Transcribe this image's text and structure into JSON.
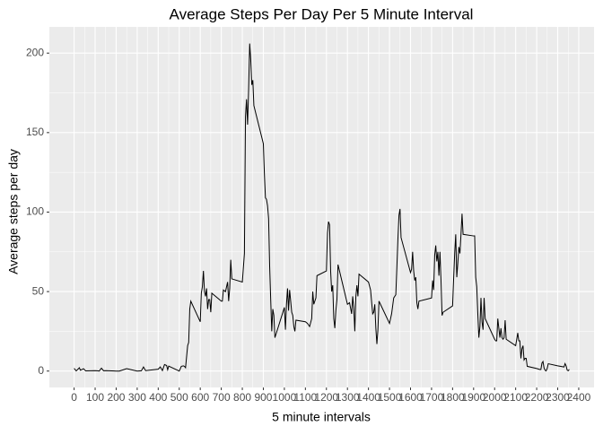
{
  "chart_data": {
    "type": "line",
    "title": "Average Steps Per Day Per 5 Minute Interval",
    "x_label": "5 minute intervals",
    "y_label": "Average steps per day",
    "x": [
      0,
      10,
      25,
      30,
      45,
      55,
      100,
      110,
      120,
      125,
      130,
      140,
      150,
      200,
      215,
      250,
      300,
      320,
      330,
      340,
      400,
      410,
      420,
      430,
      440,
      445,
      450,
      500,
      510,
      520,
      525,
      530,
      540,
      545,
      550,
      555,
      600,
      605,
      610,
      615,
      620,
      625,
      630,
      635,
      640,
      645,
      650,
      655,
      700,
      705,
      710,
      720,
      730,
      735,
      740,
      745,
      750,
      800,
      810,
      815,
      820,
      825,
      830,
      835,
      840,
      845,
      850,
      855,
      900,
      905,
      910,
      915,
      920,
      925,
      930,
      935,
      940,
      945,
      950,
      955,
      1000,
      1005,
      1010,
      1015,
      1020,
      1025,
      1030,
      1035,
      1040,
      1045,
      1050,
      1055,
      1100,
      1110,
      1120,
      1130,
      1135,
      1140,
      1145,
      1150,
      1155,
      1200,
      1205,
      1210,
      1215,
      1220,
      1225,
      1230,
      1235,
      1240,
      1245,
      1250,
      1255,
      1300,
      1310,
      1320,
      1325,
      1330,
      1335,
      1340,
      1345,
      1350,
      1355,
      1400,
      1410,
      1420,
      1425,
      1430,
      1435,
      1440,
      1445,
      1450,
      1500,
      1510,
      1520,
      1525,
      1530,
      1535,
      1540,
      1545,
      1550,
      1555,
      1600,
      1605,
      1610,
      1615,
      1620,
      1625,
      1630,
      1635,
      1640,
      1700,
      1705,
      1710,
      1715,
      1720,
      1725,
      1730,
      1735,
      1740,
      1745,
      1750,
      1755,
      1800,
      1805,
      1810,
      1815,
      1820,
      1825,
      1830,
      1835,
      1840,
      1845,
      1850,
      1900,
      1905,
      1910,
      1915,
      1920,
      1925,
      1930,
      1935,
      1940,
      1945,
      1950,
      1955,
      2000,
      2005,
      2010,
      2015,
      2020,
      2025,
      2030,
      2035,
      2040,
      2045,
      2050,
      2055,
      2100,
      2110,
      2115,
      2120,
      2125,
      2130,
      2135,
      2140,
      2145,
      2150,
      2155,
      2200,
      2215,
      2220,
      2225,
      2230,
      2235,
      2240,
      2245,
      2250,
      2255,
      2300,
      2330,
      2335,
      2340,
      2345,
      2350,
      2355
    ],
    "values": [
      1.7,
      0.1,
      2.1,
      0.5,
      1.5,
      0.1,
      0.3,
      0.2,
      0,
      1.1,
      1.8,
      0.2,
      0.3,
      0,
      0,
      1.5,
      0,
      0.2,
      2.6,
      0.3,
      1.2,
      2.6,
      0.3,
      4.1,
      3.5,
      0.8,
      3.1,
      0,
      3.0,
      3.3,
      2.9,
      2.1,
      16,
      18,
      39,
      44,
      31,
      49,
      53,
      63,
      50,
      47,
      52,
      39,
      45,
      45,
      37,
      49,
      44,
      44,
      51,
      50,
      56,
      44,
      52,
      70,
      58,
      56,
      74,
      160,
      171,
      155,
      177,
      206,
      196,
      180,
      183,
      167,
      143,
      124,
      109,
      108,
      104,
      96,
      66,
      45,
      25,
      39,
      35,
      21,
      40,
      26,
      42,
      52,
      38,
      51,
      44,
      37,
      35,
      28,
      25,
      32,
      31,
      30,
      28,
      33,
      50,
      42,
      44,
      46,
      60,
      63,
      87,
      94,
      92,
      63,
      50,
      54,
      33,
      27,
      38,
      45,
      67,
      42,
      43,
      36,
      47,
      40,
      25,
      47,
      54,
      47,
      61,
      56,
      51,
      36,
      37,
      42,
      27,
      17,
      26,
      44,
      30,
      36,
      46,
      47,
      48,
      65,
      83,
      98,
      102,
      84,
      62,
      64,
      75,
      63,
      57,
      59,
      43,
      39,
      44,
      46,
      57,
      51,
      73,
      79,
      69,
      75,
      60,
      75,
      57,
      35,
      37,
      41,
      58,
      74,
      86,
      59,
      68,
      78,
      74,
      86,
      99,
      86,
      85,
      85,
      59,
      53,
      36,
      21,
      28,
      46,
      31,
      26,
      46,
      33,
      20,
      19,
      19,
      33,
      27,
      21,
      27,
      21,
      20,
      21,
      32,
      20,
      16,
      24,
      19,
      19,
      8,
      14,
      16,
      7,
      8,
      8,
      3,
      1.6,
      1,
      1,
      5,
      6,
      2,
      0.5,
      0.1,
      1.6,
      4.6,
      3.3,
      2.6,
      4.7,
      3.3,
      0.6,
      0.2,
      1.1
    ],
    "color": "#000000",
    "xlim": [
      -117.75,
      2472.75
    ],
    "ylim": [
      -10.31,
      216.48
    ],
    "xticks": [
      0,
      100,
      200,
      300,
      400,
      500,
      600,
      700,
      800,
      900,
      1000,
      1100,
      1200,
      1300,
      1400,
      1500,
      1600,
      1700,
      1800,
      1900,
      2000,
      2100,
      2200,
      2300,
      2400
    ],
    "yticks": [
      0,
      50,
      100,
      150,
      200
    ],
    "grid": true
  }
}
